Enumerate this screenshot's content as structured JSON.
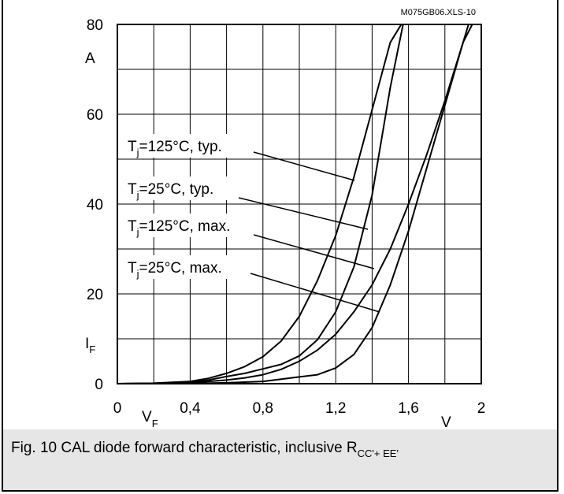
{
  "chart_data": {
    "type": "line",
    "file_label": "M075GB06.XLS-10",
    "x_axis": {
      "symbol": "V",
      "symbol_sub": "F",
      "unit": "V",
      "range": [
        0,
        2
      ],
      "tick_values": [
        0,
        0.4,
        0.8,
        1.2,
        1.6,
        2
      ],
      "tick_labels": [
        "0",
        "0,4",
        "0,8",
        "1,2",
        "1,6",
        "2"
      ]
    },
    "y_axis": {
      "symbol": "I",
      "symbol_sub": "F",
      "unit": "A",
      "range": [
        0,
        80
      ],
      "tick_values": [
        0,
        20,
        40,
        60,
        80
      ],
      "tick_labels": [
        "0",
        "20",
        "40",
        "60",
        "80"
      ]
    },
    "grid": true,
    "series": [
      {
        "name_main": "T",
        "name_sub": "j",
        "name_rest": "=125°C, typ.",
        "x": [
          0,
          0.2,
          0.4,
          0.5,
          0.6,
          0.7,
          0.8,
          0.9,
          1.0,
          1.1,
          1.2,
          1.3,
          1.4,
          1.5,
          1.56
        ],
        "y": [
          0,
          0.1,
          0.5,
          1.2,
          2.3,
          3.8,
          6.0,
          9.5,
          15,
          23,
          33,
          46,
          61,
          76,
          80
        ]
      },
      {
        "name_main": "T",
        "name_sub": "j",
        "name_rest": "=25°C, typ.",
        "x": [
          0,
          0.2,
          0.4,
          0.5,
          0.6,
          0.7,
          0.8,
          0.9,
          1.0,
          1.1,
          1.2,
          1.3,
          1.4,
          1.5,
          1.57
        ],
        "y": [
          0,
          0.05,
          0.3,
          0.8,
          1.6,
          2.3,
          3.3,
          4.3,
          6.2,
          9.8,
          16,
          26,
          42,
          66,
          80
        ]
      },
      {
        "name_main": "T",
        "name_sub": "j",
        "name_rest": "=125°C, max.",
        "x": [
          0,
          0.4,
          0.6,
          0.7,
          0.8,
          0.9,
          1.0,
          1.1,
          1.2,
          1.3,
          1.4,
          1.5,
          1.6,
          1.7,
          1.8,
          1.9,
          1.93
        ],
        "y": [
          0,
          0.2,
          0.8,
          1.3,
          2.0,
          3.2,
          5.0,
          7.5,
          11,
          16,
          22,
          30,
          40,
          51,
          63,
          76,
          80
        ]
      },
      {
        "name_main": "T",
        "name_sub": "j",
        "name_rest": "=25°C, max.",
        "x": [
          0,
          0.4,
          0.6,
          0.8,
          0.9,
          1.0,
          1.1,
          1.2,
          1.3,
          1.4,
          1.5,
          1.6,
          1.7,
          1.8,
          1.9,
          1.95
        ],
        "y": [
          0,
          0.05,
          0.2,
          0.5,
          1.0,
          1.5,
          2.0,
          3.5,
          6.5,
          12.5,
          22,
          34,
          48,
          62,
          76,
          80
        ]
      }
    ],
    "caption": {
      "text": "Fig. 10 CAL diode forward characteristic, inclusive R",
      "sub": "CC'+ EE'"
    }
  }
}
